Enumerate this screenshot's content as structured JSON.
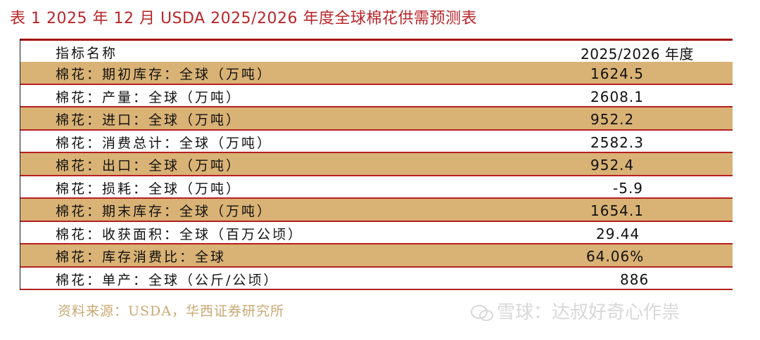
{
  "title": "表 1 2025 年 12 月 USDA 2025/2026 年度全球棉花供需预测表",
  "header": {
    "col1": "指标名称",
    "col2": "2025/2026 年度"
  },
  "rows": [
    {
      "label": "棉花：期初库存：全球（万吨）",
      "value": "1624.5",
      "shaded": true
    },
    {
      "label": "棉花：产量：全球（万吨）",
      "value": "2608.1",
      "shaded": false
    },
    {
      "label": "棉花：进口：全球（万吨）",
      "value": "952.2",
      "shaded": true
    },
    {
      "label": "棉花：消费总计：全球（万吨）",
      "value": "2582.3",
      "shaded": false
    },
    {
      "label": "棉花：出口：全球（万吨）",
      "value": "952.4",
      "shaded": true
    },
    {
      "label": "棉花：损耗：全球（万吨）",
      "value": "-5.9",
      "shaded": false
    },
    {
      "label": "棉花：期末库存：全球（万吨）",
      "value": "1654.1",
      "shaded": true
    },
    {
      "label": "棉花：收获面积：全球（百万公顷）",
      "value": "29.44",
      "shaded": false
    },
    {
      "label": "棉花：库存消费比：全球",
      "value": "64.06%",
      "shaded": true
    },
    {
      "label": "棉花：单产：全球（公斤/公顷）",
      "value": "886",
      "shaded": false
    }
  ],
  "source": "资料来源：USDA，华西证券研究所",
  "watermark": "雪球：达叔好奇心作祟",
  "colors": {
    "title": "#b8262a",
    "shade": "#d9b275",
    "rule": "#b52020",
    "source": "#c8a870"
  }
}
